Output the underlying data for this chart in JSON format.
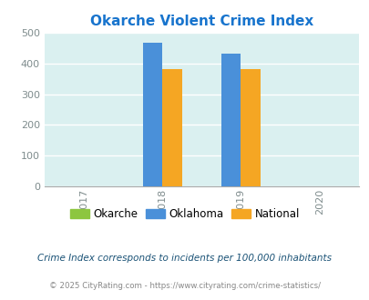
{
  "title": "Okarche Violent Crime Index",
  "title_color": "#1874CD",
  "bar_groups": {
    "2018": {
      "Oklahoma": 467,
      "National": 381
    },
    "2019": {
      "Oklahoma": 433,
      "National": 381
    }
  },
  "bar_colors": {
    "Okarche": "#8DC63F",
    "Oklahoma": "#4A90D9",
    "National": "#F5A623"
  },
  "ylim": [
    0,
    500
  ],
  "yticks": [
    0,
    100,
    200,
    300,
    400,
    500
  ],
  "bg_color": "#DAF0F0",
  "footnote1": "Crime Index corresponds to incidents per 100,000 inhabitants",
  "footnote2": "© 2025 CityRating.com - https://www.cityrating.com/crime-statistics/",
  "footnote1_color": "#1a5276",
  "footnote2_color": "#888888",
  "bar_width": 0.25,
  "x_positions": {
    "2017": 0,
    "2018": 1,
    "2019": 2,
    "2020": 3
  },
  "xtick_labels": [
    "2017",
    "2018",
    "2019",
    "2020"
  ]
}
